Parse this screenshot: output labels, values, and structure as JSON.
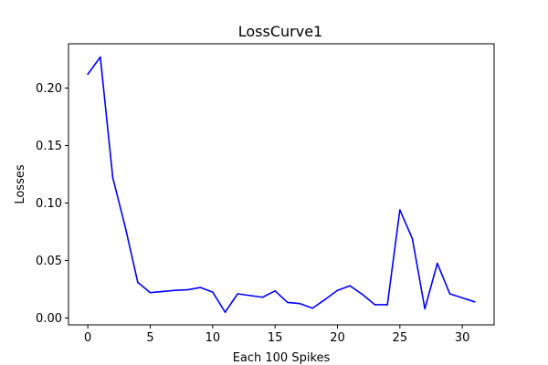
{
  "chart_data": {
    "type": "line",
    "title": "LossCurve1",
    "xlabel": "Each 100 Spikes",
    "ylabel": "Losses",
    "xlim": [
      -1.55,
      32.55
    ],
    "ylim": [
      -0.006,
      0.2385
    ],
    "xticks": [
      0,
      5,
      10,
      15,
      20,
      25,
      30
    ],
    "xtick_labels": [
      "0",
      "5",
      "10",
      "15",
      "20",
      "25",
      "30"
    ],
    "yticks": [
      0.0,
      0.05,
      0.1,
      0.15,
      0.2
    ],
    "ytick_labels": [
      "0.00",
      "0.05",
      "0.10",
      "0.15",
      "0.20"
    ],
    "grid": false,
    "series": [
      {
        "color": "#0000ff",
        "x": [
          0,
          1,
          2,
          3,
          4,
          5,
          6,
          7,
          8,
          9,
          10,
          11,
          12,
          13,
          14,
          15,
          16,
          17,
          18,
          19,
          20,
          21,
          22,
          23,
          24,
          25,
          26,
          27,
          28,
          29,
          30,
          31
        ],
        "y": [
          0.212,
          0.227,
          0.122,
          0.079,
          0.031,
          0.022,
          0.023,
          0.024,
          0.0245,
          0.0265,
          0.0225,
          0.005,
          0.021,
          0.0195,
          0.018,
          0.0235,
          0.0135,
          0.0125,
          0.0085,
          0.016,
          0.024,
          0.028,
          0.0205,
          0.0115,
          0.0115,
          0.094,
          0.069,
          0.008,
          0.0475,
          0.021,
          0.0175,
          0.014
        ]
      }
    ]
  }
}
